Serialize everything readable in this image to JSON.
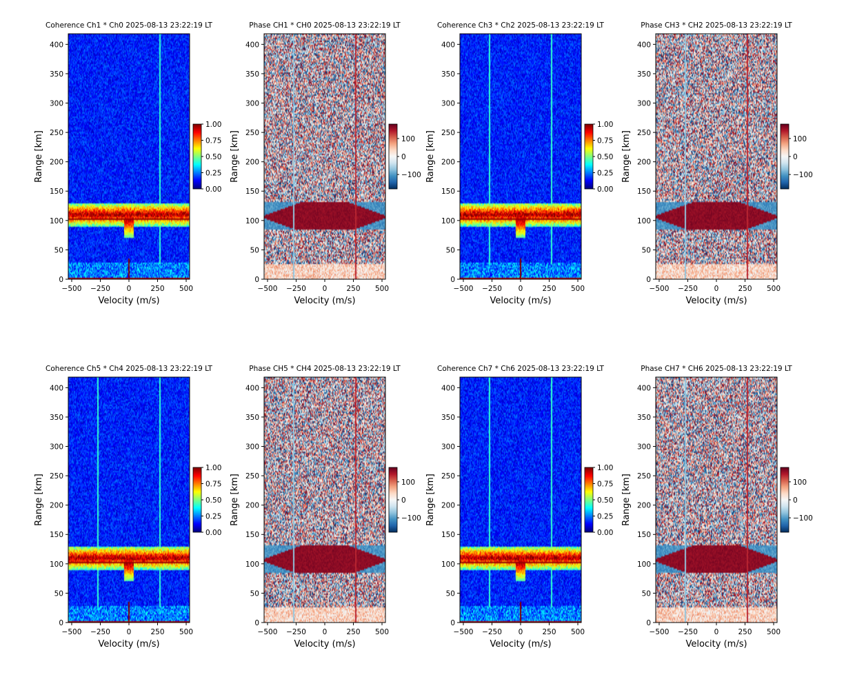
{
  "figure": {
    "panel_titles": [
      "Coherence Ch1 * Ch0 2025-08-13 23:22:19 LT",
      "Phase CH1 * CH0 2025-08-13 23:22:19 LT",
      "Coherence Ch3 * Ch2 2025-08-13 23:22:19 LT",
      "Phase CH3 * CH2 2025-08-13 23:22:19 LT",
      "Coherence Ch5 * Ch4 2025-08-13 23:22:19 LT",
      "Phase CH5 * CH4 2025-08-13 23:22:19 LT",
      "Coherence Ch7 * Ch6 2025-08-13 23:22:19 LT",
      "Phase CH7 * CH6 2025-08-13 23:22:19 LT"
    ]
  },
  "chart_data": [
    {
      "type": "heatmap",
      "title": "Coherence Ch1 * Ch0 2025-08-13 23:22:19 LT",
      "xlabel": "Velocity (m/s)",
      "ylabel": "Range [km]",
      "xlim": [
        -530,
        530
      ],
      "ylim": [
        0,
        418
      ],
      "xticks": [
        -500,
        -250,
        0,
        250,
        500
      ],
      "yticks": [
        0,
        50,
        100,
        150,
        200,
        250,
        300,
        350,
        400
      ],
      "colormap": "jet",
      "colorbar": {
        "range": [
          0,
          1
        ],
        "ticks": [
          0.0,
          0.25,
          0.5,
          0.75,
          1.0
        ],
        "tick_labels": [
          "0.00",
          "0.25",
          "0.50",
          "0.75",
          "1.00"
        ]
      },
      "features": {
        "layer_range_km": [
          90,
          130
        ],
        "spike_velocity_ms": [
          0
        ],
        "vertical_lines_ms": [
          270
        ],
        "near_range_km": 28
      }
    },
    {
      "type": "heatmap",
      "title": "Phase CH1 * CH0 2025-08-13 23:22:19 LT",
      "xlabel": "Velocity (m/s)",
      "ylabel": "Range [km]",
      "xlim": [
        -530,
        530
      ],
      "ylim": [
        0,
        418
      ],
      "xticks": [
        -500,
        -250,
        0,
        250,
        500
      ],
      "yticks": [
        0,
        50,
        100,
        150,
        200,
        250,
        300,
        350,
        400
      ],
      "colormap": "RdBu_r",
      "colorbar": {
        "range": [
          -180,
          180
        ],
        "ticks": [
          -100,
          0,
          100
        ],
        "tick_labels": [
          "−100",
          "0",
          "100"
        ]
      },
      "features": {
        "layer_range_km": [
          90,
          130
        ],
        "vertical_lines_ms": [
          -270,
          270
        ],
        "near_range_km": 25
      }
    },
    {
      "type": "heatmap",
      "title": "Coherence Ch3 * Ch2 2025-08-13 23:22:19 LT",
      "xlabel": "Velocity (m/s)",
      "ylabel": "Range [km]",
      "xlim": [
        -530,
        530
      ],
      "ylim": [
        0,
        418
      ],
      "xticks": [
        -500,
        -250,
        0,
        250,
        500
      ],
      "yticks": [
        0,
        50,
        100,
        150,
        200,
        250,
        300,
        350,
        400
      ],
      "colormap": "jet",
      "colorbar": {
        "range": [
          0,
          1
        ],
        "ticks": [
          0.0,
          0.25,
          0.5,
          0.75,
          1.0
        ],
        "tick_labels": [
          "0.00",
          "0.25",
          "0.50",
          "0.75",
          "1.00"
        ]
      },
      "features": {
        "layer_range_km": [
          90,
          130
        ],
        "spike_velocity_ms": [
          0
        ],
        "vertical_lines_ms": [
          -270,
          270
        ],
        "near_range_km": 28
      }
    },
    {
      "type": "heatmap",
      "title": "Phase CH3 * CH2 2025-08-13 23:22:19 LT",
      "xlabel": "Velocity (m/s)",
      "ylabel": "Range [km]",
      "xlim": [
        -530,
        530
      ],
      "ylim": [
        0,
        418
      ],
      "xticks": [
        -500,
        -250,
        0,
        250,
        500
      ],
      "yticks": [
        0,
        50,
        100,
        150,
        200,
        250,
        300,
        350,
        400
      ],
      "colormap": "RdBu_r",
      "colorbar": {
        "range": [
          -180,
          180
        ],
        "ticks": [
          -100,
          0,
          100
        ],
        "tick_labels": [
          "−100",
          "0",
          "100"
        ]
      },
      "features": {
        "layer_range_km": [
          90,
          130
        ],
        "vertical_lines_ms": [
          -270,
          270
        ],
        "near_range_km": 25
      }
    },
    {
      "type": "heatmap",
      "title": "Coherence Ch5 * Ch4 2025-08-13 23:22:19 LT",
      "xlabel": "Velocity (m/s)",
      "ylabel": "Range [km]",
      "xlim": [
        -530,
        530
      ],
      "ylim": [
        0,
        418
      ],
      "xticks": [
        -500,
        -250,
        0,
        250,
        500
      ],
      "yticks": [
        0,
        50,
        100,
        150,
        200,
        250,
        300,
        350,
        400
      ],
      "colormap": "jet",
      "colorbar": {
        "range": [
          0,
          1
        ],
        "ticks": [
          0.0,
          0.25,
          0.5,
          0.75,
          1.0
        ],
        "tick_labels": [
          "0.00",
          "0.25",
          "0.50",
          "0.75",
          "1.00"
        ]
      },
      "features": {
        "layer_range_km": [
          90,
          130
        ],
        "spike_velocity_ms": [
          0
        ],
        "vertical_lines_ms": [
          -270,
          270
        ],
        "near_range_km": 28
      }
    },
    {
      "type": "heatmap",
      "title": "Phase CH5 * CH4 2025-08-13 23:22:19 LT",
      "xlabel": "Velocity (m/s)",
      "ylabel": "Range [km]",
      "xlim": [
        -530,
        530
      ],
      "ylim": [
        0,
        418
      ],
      "xticks": [
        -500,
        -250,
        0,
        250,
        500
      ],
      "yticks": [
        0,
        50,
        100,
        150,
        200,
        250,
        300,
        350,
        400
      ],
      "colormap": "RdBu_r",
      "colorbar": {
        "range": [
          -180,
          180
        ],
        "ticks": [
          -100,
          0,
          100
        ],
        "tick_labels": [
          "−100",
          "0",
          "100"
        ]
      },
      "features": {
        "layer_range_km": [
          90,
          130
        ],
        "vertical_lines_ms": [
          -270,
          270
        ],
        "near_range_km": 25
      }
    },
    {
      "type": "heatmap",
      "title": "Coherence Ch7 * Ch6 2025-08-13 23:22:19 LT",
      "xlabel": "Velocity (m/s)",
      "ylabel": "Range [km]",
      "xlim": [
        -530,
        530
      ],
      "ylim": [
        0,
        418
      ],
      "xticks": [
        -500,
        -250,
        0,
        250,
        500
      ],
      "yticks": [
        0,
        50,
        100,
        150,
        200,
        250,
        300,
        350,
        400
      ],
      "colormap": "jet",
      "colorbar": {
        "range": [
          0,
          1
        ],
        "ticks": [
          0.0,
          0.25,
          0.5,
          0.75,
          1.0
        ],
        "tick_labels": [
          "0.00",
          "0.25",
          "0.50",
          "0.75",
          "1.00"
        ]
      },
      "features": {
        "layer_range_km": [
          90,
          130
        ],
        "spike_velocity_ms": [
          0
        ],
        "vertical_lines_ms": [
          -270,
          270
        ],
        "near_range_km": 28
      }
    },
    {
      "type": "heatmap",
      "title": "Phase CH7 * CH6 2025-08-13 23:22:19 LT",
      "xlabel": "Velocity (m/s)",
      "ylabel": "Range [km]",
      "xlim": [
        -530,
        530
      ],
      "ylim": [
        0,
        418
      ],
      "xticks": [
        -500,
        -250,
        0,
        250,
        500
      ],
      "yticks": [
        0,
        50,
        100,
        150,
        200,
        250,
        300,
        350,
        400
      ],
      "colormap": "RdBu_r",
      "colorbar": {
        "range": [
          -180,
          180
        ],
        "ticks": [
          -100,
          0,
          100
        ],
        "tick_labels": [
          "−100",
          "0",
          "100"
        ]
      },
      "features": {
        "layer_range_km": [
          90,
          130
        ],
        "vertical_lines_ms": [
          -270,
          270
        ],
        "near_range_km": 25
      }
    }
  ]
}
